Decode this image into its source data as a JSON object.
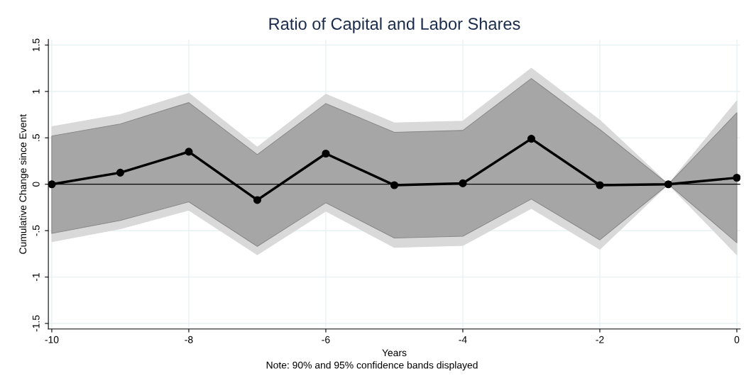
{
  "chart_data": {
    "type": "line",
    "title": "Ratio of Capital and Labor Shares",
    "xlabel": "Years",
    "ylabel": "Cumulative Change since Event",
    "x": [
      -10,
      -9,
      -8,
      -7,
      -6,
      -5,
      -4,
      -3,
      -2,
      -1,
      0
    ],
    "series": [
      {
        "type": "area",
        "color": "#d9d9d9",
        "values": [
          null,
          null,
          null,
          null,
          null,
          null,
          null,
          null,
          null,
          null,
          null
        ],
        "lower": [
          -0.62,
          -0.48,
          -0.28,
          -0.76,
          -0.29,
          -0.68,
          -0.66,
          -0.26,
          -0.7,
          0,
          -0.76
        ],
        "upper": [
          0.62,
          0.75,
          0.98,
          0.4,
          0.97,
          0.66,
          0.68,
          1.25,
          0.69,
          0,
          0.9
        ]
      },
      {
        "type": "area",
        "color": "#a6a6a6",
        "values": [
          null,
          null,
          null,
          null,
          null,
          null,
          null,
          null,
          null,
          null,
          null
        ],
        "lower": [
          -0.53,
          -0.39,
          -0.19,
          -0.67,
          -0.2,
          -0.58,
          -0.56,
          -0.16,
          -0.6,
          0,
          -0.63
        ],
        "upper": [
          0.52,
          0.65,
          0.88,
          0.32,
          0.87,
          0.56,
          0.58,
          1.14,
          0.59,
          0,
          0.77
        ]
      },
      {
        "color": "#000000",
        "values": [
          0,
          0.125,
          0.35,
          -0.17,
          0.33,
          -0.01,
          0.01,
          0.49,
          -0.01,
          0,
          0.07
        ]
      }
    ],
    "marker": "circle",
    "line_style": "solid",
    "xlim": [
      -10.05,
      0.05
    ],
    "xticks": [
      -10,
      -8,
      -6,
      -4,
      -2,
      0
    ],
    "ylim": [
      -1.56,
      1.56
    ],
    "yticks": [
      {
        "value": -1.5,
        "label": "-1.5"
      },
      {
        "value": -1,
        "label": "-1"
      },
      {
        "value": -0.5,
        "label": "-.5"
      },
      0,
      {
        "value": 0.5,
        "label": ".5"
      },
      1,
      {
        "value": 1.5,
        "label": "1.5"
      }
    ],
    "ref_lines": [
      {
        "axis": "y",
        "value": 0,
        "color": "#000000"
      }
    ],
    "grid": true,
    "legend": false,
    "annotations": [
      "Note: 90% and 95% confidence bands displayed"
    ]
  }
}
